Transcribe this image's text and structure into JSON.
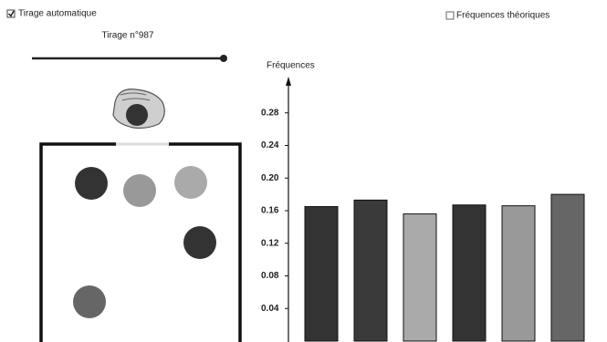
{
  "controls": {
    "auto_draw": "Tirage automatique",
    "draw_counter": "Tirage n°987",
    "theoretical": "Fréquences théoriques"
  },
  "chart_data": {
    "type": "bar",
    "y_label": "Fréquences",
    "categories": [
      null,
      null,
      null,
      null,
      null,
      null
    ],
    "values": [
      0.165,
      0.173,
      0.156,
      0.167,
      0.166,
      0.18
    ],
    "colors": [
      "#333333",
      "#3a3a3a",
      "#aaaaaa",
      "#333333",
      "#999999",
      "#666666"
    ],
    "ylim": [
      0,
      0.32
    ],
    "yticks": [
      0.04,
      0.08,
      0.12,
      0.16,
      {
        "value": 0.2,
        "label": "0.20"
      },
      0.24,
      0.28
    ]
  }
}
